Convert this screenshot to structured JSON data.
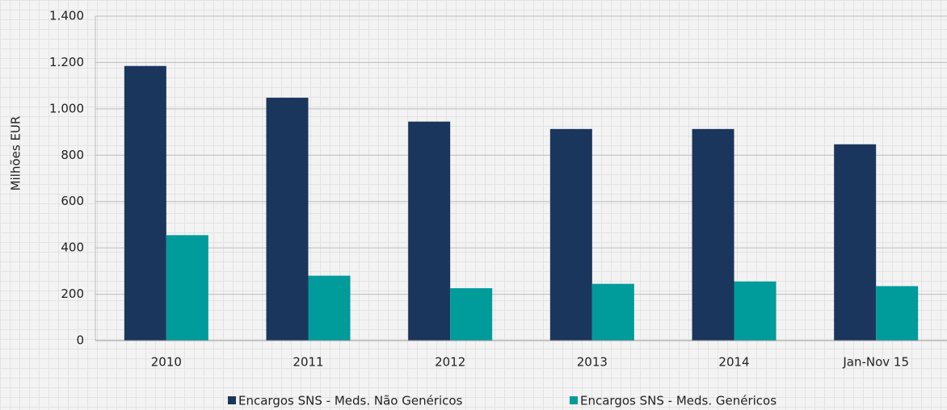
{
  "chart_data": {
    "type": "bar",
    "y_label": "Milhões EUR",
    "categories": [
      "2010",
      "2011",
      "2012",
      "2013",
      "2014",
      "Jan-Nov 15"
    ],
    "series": [
      {
        "name": "Encargos SNS - Meds. Não Genéricos",
        "color": "#1b365d",
        "values": [
          1185,
          1048,
          945,
          913,
          913,
          847
        ]
      },
      {
        "name": "Encargos SNS - Meds. Genéricos",
        "color": "#009b9b",
        "values": [
          455,
          280,
          226,
          245,
          255,
          235
        ]
      }
    ],
    "ylim": [
      0,
      1400
    ],
    "yticks": [
      0,
      200,
      400,
      600,
      800,
      {
        "value": 1000,
        "label": "1.000"
      },
      {
        "value": 1200,
        "label": "1.200"
      },
      {
        "value": 1400,
        "label": "1.400"
      }
    ],
    "grid": true,
    "legend": "bottom"
  }
}
